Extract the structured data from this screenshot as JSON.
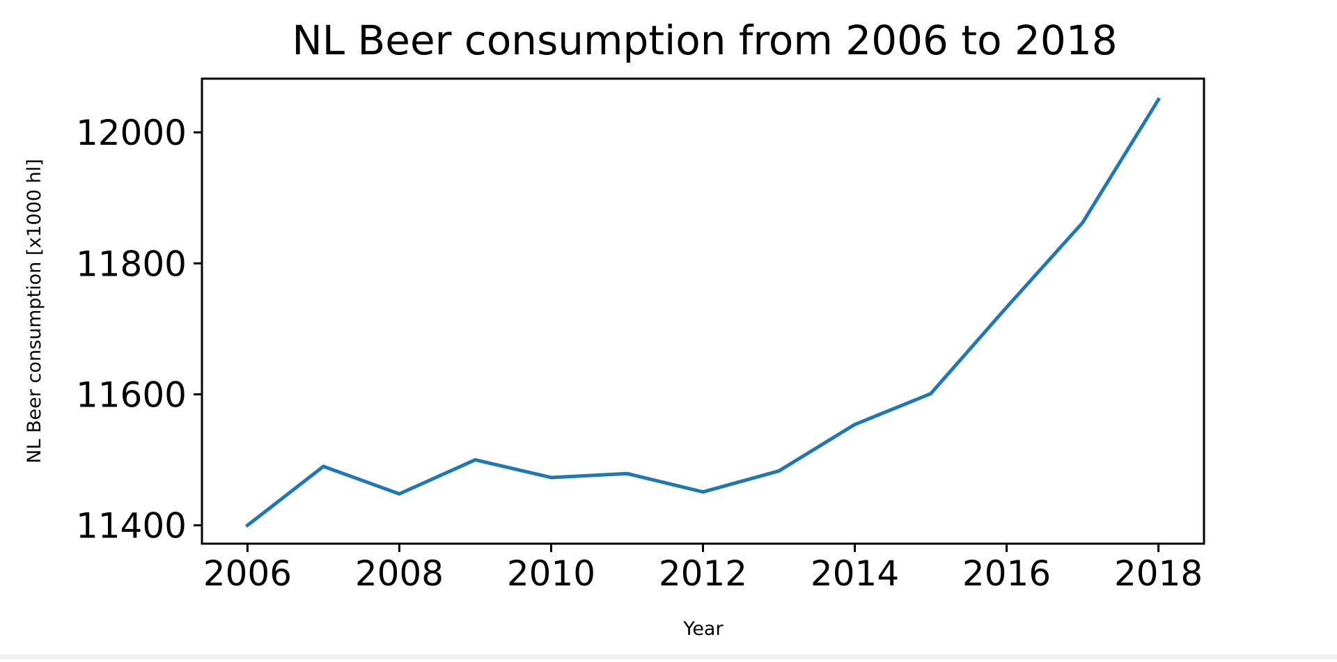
{
  "chart_data": {
    "type": "line",
    "title": "NL Beer consumption from 2006 to 2018",
    "xlabel": "Year",
    "ylabel": "NL Beer consumption [x1000 hl]",
    "xlim": [
      2005.4,
      2018.6
    ],
    "ylim": [
      11372,
      12082
    ],
    "x_ticks": [
      2006,
      2008,
      2010,
      2012,
      2014,
      2016,
      2018
    ],
    "y_ticks": [
      11400,
      11600,
      11800,
      12000
    ],
    "grid": false,
    "series": [
      {
        "color": "#1f77b4",
        "x": [
          2006,
          2007,
          2008,
          2009,
          2010,
          2011,
          2012,
          2013,
          2014,
          2015,
          2016,
          2017,
          2018
        ],
        "y": [
          11400,
          11490,
          11448,
          11500,
          11473,
          11479,
          11451,
          11483,
          11554,
          11601,
          11733,
          11862,
          12050
        ]
      }
    ]
  }
}
